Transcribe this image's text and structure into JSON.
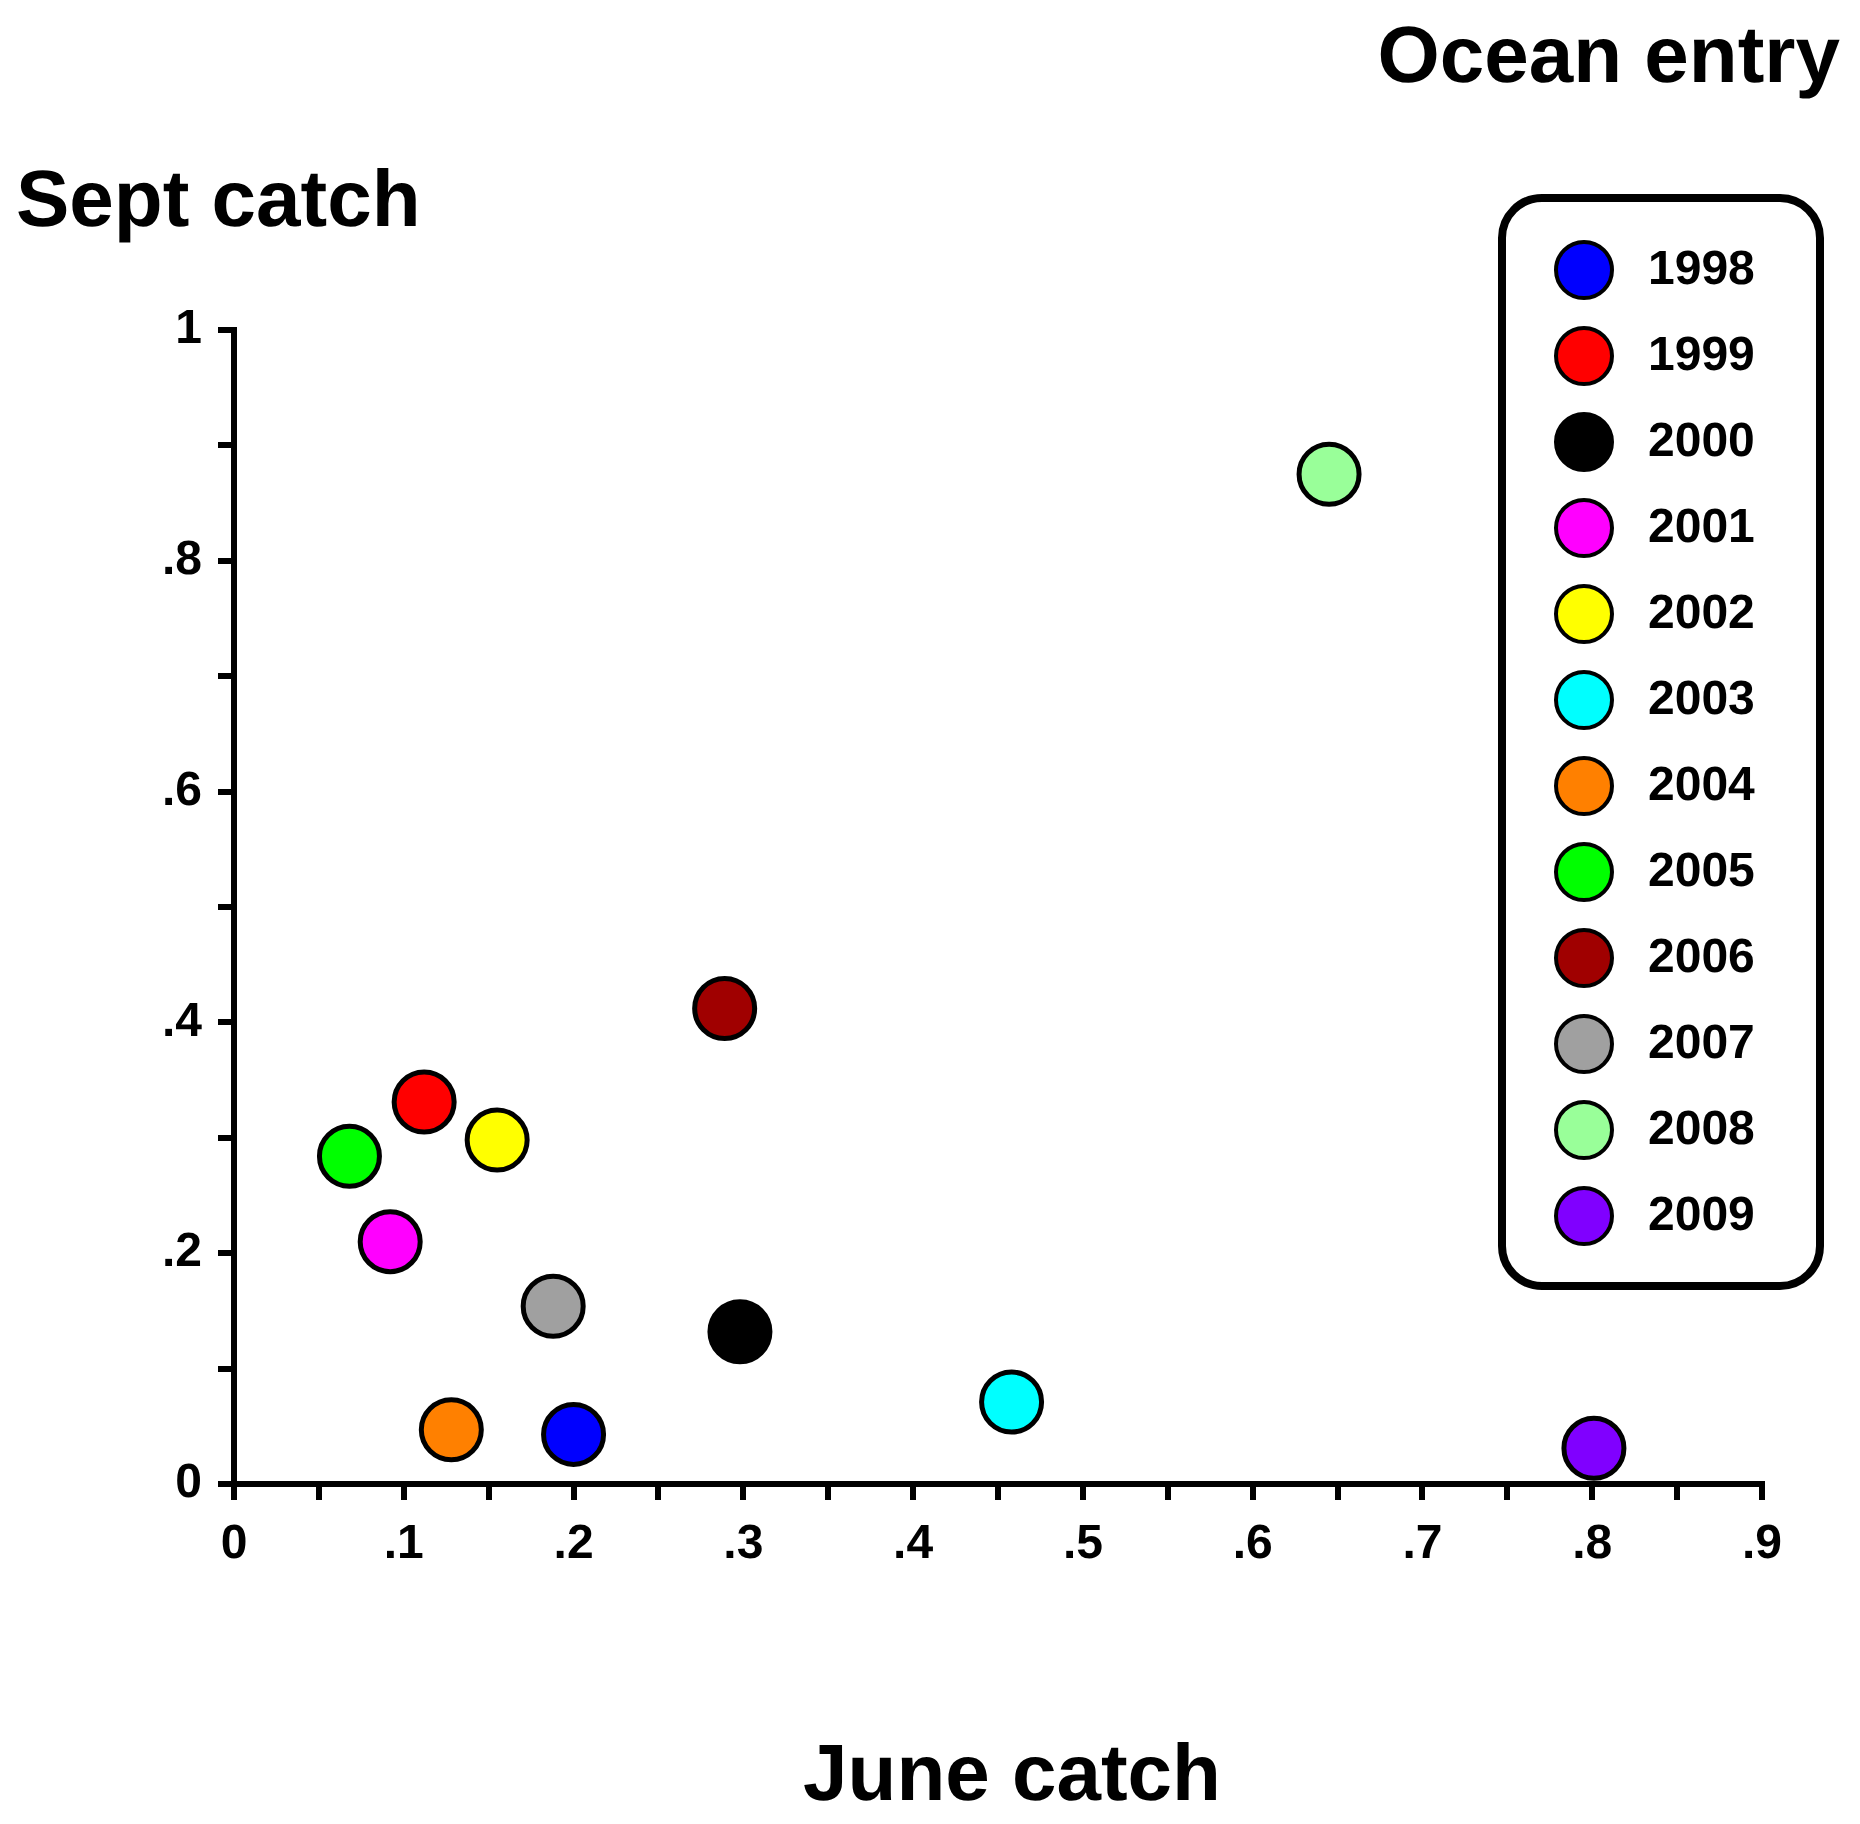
{
  "chart_data": {
    "type": "scatter",
    "title": "Ocean entry",
    "xlabel": "June catch",
    "ylabel": "Sept catch",
    "marker": "circle",
    "legend": "top right",
    "grid": false,
    "xlim": [
      0,
      0.9
    ],
    "ylim": [
      0,
      1
    ],
    "xticks": [
      0,
      {
        "value": 0.05,
        "label": null
      },
      {
        "value": 0.1,
        "label": ".1"
      },
      {
        "value": 0.15,
        "label": null
      },
      {
        "value": 0.2,
        "label": ".2"
      },
      {
        "value": 0.25,
        "label": null
      },
      {
        "value": 0.3,
        "label": ".3"
      },
      {
        "value": 0.35,
        "label": null
      },
      {
        "value": 0.4,
        "label": ".4"
      },
      {
        "value": 0.45,
        "label": null
      },
      {
        "value": 0.5,
        "label": ".5"
      },
      {
        "value": 0.55,
        "label": null
      },
      {
        "value": 0.6,
        "label": ".6"
      },
      {
        "value": 0.65,
        "label": null
      },
      {
        "value": 0.7,
        "label": ".7"
      },
      {
        "value": 0.75,
        "label": null
      },
      {
        "value": 0.8,
        "label": ".8"
      },
      {
        "value": 0.85,
        "label": null
      },
      {
        "value": 0.9,
        "label": ".9"
      }
    ],
    "yticks": [
      0,
      {
        "value": 0.1,
        "label": null
      },
      {
        "value": 0.2,
        "label": ".2"
      },
      {
        "value": 0.3,
        "label": null
      },
      {
        "value": 0.4,
        "label": ".4"
      },
      {
        "value": 0.5,
        "label": null
      },
      {
        "value": 0.6,
        "label": ".6"
      },
      {
        "value": 0.7,
        "label": null
      },
      {
        "value": 0.8,
        "label": ".8"
      },
      {
        "value": 0.9,
        "label": null
      },
      1
    ],
    "series": [
      {
        "name": "1998",
        "color": "#0000ff",
        "x": [
          0.2
        ],
        "values": [
          0.043
        ]
      },
      {
        "name": "1999",
        "color": "#ff0000",
        "x": [
          0.112
        ],
        "values": [
          0.331
        ]
      },
      {
        "name": "2000",
        "color": "#000000",
        "x": [
          0.298
        ],
        "values": [
          0.132
        ]
      },
      {
        "name": "2001",
        "color": "#ff00ff",
        "x": [
          0.092
        ],
        "values": [
          0.21
        ]
      },
      {
        "name": "2002",
        "color": "#ffff00",
        "x": [
          0.155
        ],
        "values": [
          0.298
        ]
      },
      {
        "name": "2003",
        "color": "#00ffff",
        "x": [
          0.458
        ],
        "values": [
          0.071
        ]
      },
      {
        "name": "2004",
        "color": "#ff8000",
        "x": [
          0.128
        ],
        "values": [
          0.047
        ]
      },
      {
        "name": "2005",
        "color": "#00ff00",
        "x": [
          0.068
        ],
        "values": [
          0.284
        ]
      },
      {
        "name": "2006",
        "color": "#a00000",
        "x": [
          0.289
        ],
        "values": [
          0.412
        ]
      },
      {
        "name": "2007",
        "color": "#a0a0a0",
        "x": [
          0.188
        ],
        "values": [
          0.154
        ]
      },
      {
        "name": "2008",
        "color": "#99ff99",
        "x": [
          0.645
        ],
        "values": [
          0.875
        ]
      },
      {
        "name": "2009",
        "color": "#8000ff",
        "x": [
          0.801
        ],
        "values": [
          0.031
        ]
      }
    ]
  }
}
